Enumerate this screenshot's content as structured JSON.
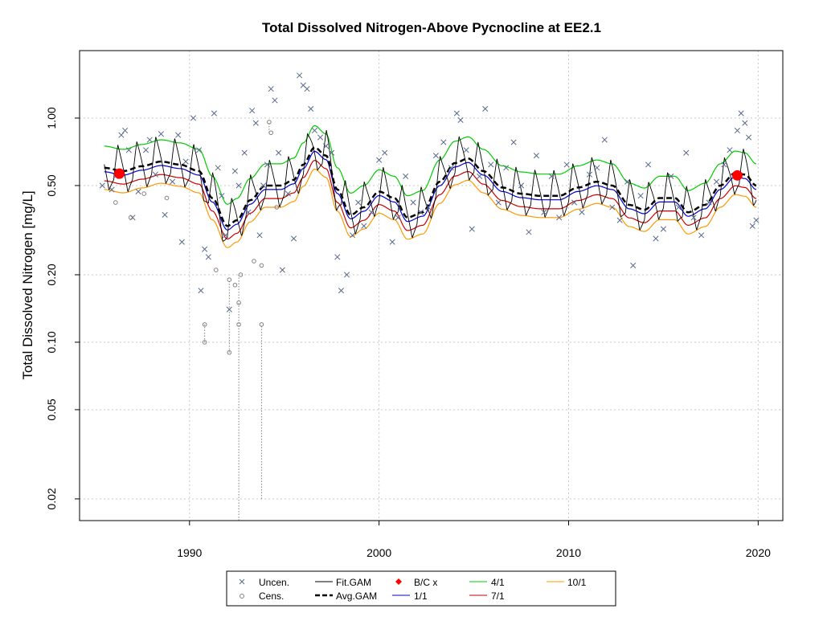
{
  "chart_data": {
    "type": "line",
    "title": "Total Dissolved Nitrogen-Above Pycnocline at EE2.1",
    "xlabel": "",
    "ylabel": "Total Dissolved Nitrogen [mg/L]",
    "y_scale": "log",
    "xlim": [
      1984.2,
      2021.3
    ],
    "ylim": [
      0.016,
      2.0
    ],
    "x_ticks": [
      "1990",
      "2000",
      "2010",
      "2020"
    ],
    "x_tick_values": [
      1990,
      2000,
      2010,
      2020
    ],
    "y_ticks": [
      "0.02",
      "0.05",
      "0.10",
      "0.20",
      "0.50",
      "1.00"
    ],
    "y_tick_values": [
      0.02,
      0.05,
      0.1,
      0.2,
      0.5,
      1.0
    ],
    "grid": true,
    "legend_position": "bottom",
    "legend": [
      "Uncen.",
      "Cens.",
      "Fit.GAM",
      "Avg.GAM",
      "B/C x",
      "1/1",
      "4/1",
      "7/1",
      "10/1"
    ],
    "colors": {
      "uncensored": "#5a6a8a",
      "censored": "#808080",
      "fit_gam": "#000000",
      "avg_gam": "#000000",
      "bc_marker": "#ff0000",
      "jan1": "#0000cc",
      "apr1": "#00cc00",
      "jul1": "#cc0000",
      "oct1": "#ff9900",
      "grid": "#c8c8c8"
    },
    "avg_gam": {
      "x": [
        1985.5,
        1986.5,
        1987.5,
        1988.5,
        1989.5,
        1990.5,
        1991.2,
        1992.0,
        1992.5,
        1993.2,
        1994.0,
        1994.8,
        1995.5,
        1996.0,
        1996.6,
        1997.2,
        1997.8,
        1998.5,
        1999.2,
        2000.0,
        2000.8,
        2001.5,
        2002.3,
        2003.2,
        2004.0,
        2004.7,
        2005.5,
        2006.5,
        2007.5,
        2008.5,
        2009.5,
        2010.5,
        2011.5,
        2012.3,
        2013.2,
        2014.0,
        2014.8,
        2015.6,
        2016.3,
        2017.2,
        2018.0,
        2018.8,
        2019.3,
        2019.9
      ],
      "y": [
        0.6,
        0.58,
        0.61,
        0.64,
        0.62,
        0.58,
        0.44,
        0.33,
        0.35,
        0.43,
        0.5,
        0.5,
        0.53,
        0.62,
        0.74,
        0.68,
        0.48,
        0.37,
        0.4,
        0.47,
        0.44,
        0.36,
        0.38,
        0.52,
        0.63,
        0.66,
        0.58,
        0.49,
        0.46,
        0.45,
        0.45,
        0.49,
        0.52,
        0.5,
        0.41,
        0.39,
        0.44,
        0.44,
        0.38,
        0.41,
        0.5,
        0.57,
        0.56,
        0.5
      ]
    },
    "season_offsets": {
      "1/1": 0.96,
      "4/1": 1.25,
      "7/1": 0.875,
      "10/1": 0.8
    },
    "bc_points": [
      {
        "x": 1986.3,
        "y": 0.565
      },
      {
        "x": 2018.9,
        "y": 0.555
      }
    ],
    "uncensored": [
      {
        "x": 1985.4,
        "y": 0.5
      },
      {
        "x": 1985.9,
        "y": 0.48
      },
      {
        "x": 1986.1,
        "y": 0.55
      },
      {
        "x": 1986.4,
        "y": 0.84
      },
      {
        "x": 1986.6,
        "y": 0.88
      },
      {
        "x": 1986.8,
        "y": 0.72
      },
      {
        "x": 1987.0,
        "y": 0.36
      },
      {
        "x": 1987.3,
        "y": 0.47
      },
      {
        "x": 1987.7,
        "y": 0.72
      },
      {
        "x": 1987.9,
        "y": 0.8
      },
      {
        "x": 1988.2,
        "y": 0.56
      },
      {
        "x": 1988.5,
        "y": 0.85
      },
      {
        "x": 1988.7,
        "y": 0.37
      },
      {
        "x": 1989.1,
        "y": 0.52
      },
      {
        "x": 1989.4,
        "y": 0.84
      },
      {
        "x": 1989.6,
        "y": 0.28
      },
      {
        "x": 1989.8,
        "y": 0.64
      },
      {
        "x": 1990.2,
        "y": 1.0
      },
      {
        "x": 1990.5,
        "y": 0.72
      },
      {
        "x": 1990.6,
        "y": 0.17
      },
      {
        "x": 1990.8,
        "y": 0.26
      },
      {
        "x": 1991.0,
        "y": 0.24
      },
      {
        "x": 1991.3,
        "y": 1.05
      },
      {
        "x": 1991.5,
        "y": 0.6
      },
      {
        "x": 1991.7,
        "y": 0.45
      },
      {
        "x": 1991.9,
        "y": 0.3
      },
      {
        "x": 1992.1,
        "y": 0.14
      },
      {
        "x": 1992.4,
        "y": 0.58
      },
      {
        "x": 1992.6,
        "y": 0.5
      },
      {
        "x": 1992.9,
        "y": 0.7
      },
      {
        "x": 1993.1,
        "y": 0.38
      },
      {
        "x": 1993.3,
        "y": 1.08
      },
      {
        "x": 1993.5,
        "y": 0.95
      },
      {
        "x": 1993.7,
        "y": 0.3
      },
      {
        "x": 1993.9,
        "y": 0.5
      },
      {
        "x": 1994.1,
        "y": 0.62
      },
      {
        "x": 1994.3,
        "y": 1.35
      },
      {
        "x": 1994.5,
        "y": 1.2
      },
      {
        "x": 1994.7,
        "y": 0.7
      },
      {
        "x": 1994.9,
        "y": 0.21
      },
      {
        "x": 1995.2,
        "y": 0.46
      },
      {
        "x": 1995.5,
        "y": 0.29
      },
      {
        "x": 1995.8,
        "y": 1.55
      },
      {
        "x": 1996.0,
        "y": 1.4
      },
      {
        "x": 1996.2,
        "y": 1.35
      },
      {
        "x": 1996.4,
        "y": 1.1
      },
      {
        "x": 1996.6,
        "y": 0.88
      },
      {
        "x": 1996.9,
        "y": 0.82
      },
      {
        "x": 1997.2,
        "y": 0.75
      },
      {
        "x": 1997.5,
        "y": 0.7
      },
      {
        "x": 1997.8,
        "y": 0.24
      },
      {
        "x": 1998.0,
        "y": 0.17
      },
      {
        "x": 1998.3,
        "y": 0.2
      },
      {
        "x": 1998.6,
        "y": 0.3
      },
      {
        "x": 1998.9,
        "y": 0.42
      },
      {
        "x": 1999.2,
        "y": 0.33
      },
      {
        "x": 1999.6,
        "y": 0.38
      },
      {
        "x": 2000.0,
        "y": 0.65
      },
      {
        "x": 2000.3,
        "y": 0.7
      },
      {
        "x": 2000.7,
        "y": 0.28
      },
      {
        "x": 2001.0,
        "y": 0.36
      },
      {
        "x": 2001.4,
        "y": 0.55
      },
      {
        "x": 2001.8,
        "y": 0.42
      },
      {
        "x": 2002.2,
        "y": 0.38
      },
      {
        "x": 2002.6,
        "y": 0.4
      },
      {
        "x": 2003.0,
        "y": 0.68
      },
      {
        "x": 2003.4,
        "y": 0.78
      },
      {
        "x": 2003.8,
        "y": 0.6
      },
      {
        "x": 2004.1,
        "y": 1.05
      },
      {
        "x": 2004.3,
        "y": 0.98
      },
      {
        "x": 2004.6,
        "y": 0.72
      },
      {
        "x": 2004.9,
        "y": 0.32
      },
      {
        "x": 2005.3,
        "y": 0.55
      },
      {
        "x": 2005.6,
        "y": 1.1
      },
      {
        "x": 2005.9,
        "y": 0.62
      },
      {
        "x": 2006.3,
        "y": 0.42
      },
      {
        "x": 2006.7,
        "y": 0.6
      },
      {
        "x": 2007.1,
        "y": 0.78
      },
      {
        "x": 2007.5,
        "y": 0.5
      },
      {
        "x": 2007.9,
        "y": 0.31
      },
      {
        "x": 2008.3,
        "y": 0.68
      },
      {
        "x": 2008.7,
        "y": 0.38
      },
      {
        "x": 2009.1,
        "y": 0.55
      },
      {
        "x": 2009.5,
        "y": 0.36
      },
      {
        "x": 2009.9,
        "y": 0.62
      },
      {
        "x": 2010.3,
        "y": 0.42
      },
      {
        "x": 2010.7,
        "y": 0.38
      },
      {
        "x": 2011.1,
        "y": 0.56
      },
      {
        "x": 2011.5,
        "y": 0.6
      },
      {
        "x": 2011.9,
        "y": 0.8
      },
      {
        "x": 2012.3,
        "y": 0.4
      },
      {
        "x": 2012.7,
        "y": 0.35
      },
      {
        "x": 2013.1,
        "y": 0.52
      },
      {
        "x": 2013.4,
        "y": 0.22
      },
      {
        "x": 2013.8,
        "y": 0.45
      },
      {
        "x": 2014.2,
        "y": 0.62
      },
      {
        "x": 2014.6,
        "y": 0.29
      },
      {
        "x": 2015.0,
        "y": 0.32
      },
      {
        "x": 2015.4,
        "y": 0.55
      },
      {
        "x": 2015.8,
        "y": 0.4
      },
      {
        "x": 2016.2,
        "y": 0.7
      },
      {
        "x": 2016.6,
        "y": 0.36
      },
      {
        "x": 2017.0,
        "y": 0.3
      },
      {
        "x": 2017.4,
        "y": 0.42
      },
      {
        "x": 2017.8,
        "y": 0.52
      },
      {
        "x": 2018.2,
        "y": 0.62
      },
      {
        "x": 2018.5,
        "y": 0.72
      },
      {
        "x": 2018.9,
        "y": 0.88
      },
      {
        "x": 2019.1,
        "y": 1.05
      },
      {
        "x": 2019.3,
        "y": 0.95
      },
      {
        "x": 2019.5,
        "y": 0.82
      },
      {
        "x": 2019.7,
        "y": 0.33
      },
      {
        "x": 2019.9,
        "y": 0.35
      }
    ],
    "censored": [
      {
        "x": 1986.1,
        "y": 0.42
      },
      {
        "x": 1986.9,
        "y": 0.36
      },
      {
        "x": 1987.6,
        "y": 0.46
      },
      {
        "x": 1988.8,
        "y": 0.44
      },
      {
        "x": 1990.8,
        "y": 0.12
      },
      {
        "x": 1990.8,
        "y": 0.1
      },
      {
        "x": 1991.4,
        "y": 0.21
      },
      {
        "x": 1992.1,
        "y": 0.19
      },
      {
        "x": 1992.1,
        "y": 0.09
      },
      {
        "x": 1992.4,
        "y": 0.18
      },
      {
        "x": 1992.6,
        "y": 0.15
      },
      {
        "x": 1992.6,
        "y": 0.12
      },
      {
        "x": 1992.7,
        "y": 0.2
      },
      {
        "x": 1993.4,
        "y": 0.23
      },
      {
        "x": 1993.8,
        "y": 0.22
      },
      {
        "x": 1993.8,
        "y": 0.12
      },
      {
        "x": 1994.2,
        "y": 0.96
      },
      {
        "x": 1994.3,
        "y": 0.86
      },
      {
        "x": 1994.6,
        "y": 0.4
      }
    ],
    "censored_lines": [
      {
        "x": 1990.8,
        "y0": 0.1,
        "y1": 0.12
      },
      {
        "x": 1992.1,
        "y0": 0.09,
        "y1": 0.19
      },
      {
        "x": 1992.6,
        "y0": 0.016,
        "y1": 0.2
      },
      {
        "x": 1993.8,
        "y0": 0.02,
        "y1": 0.12
      },
      {
        "x": 1994.2,
        "y0": 0.86,
        "y1": 0.96
      }
    ]
  }
}
